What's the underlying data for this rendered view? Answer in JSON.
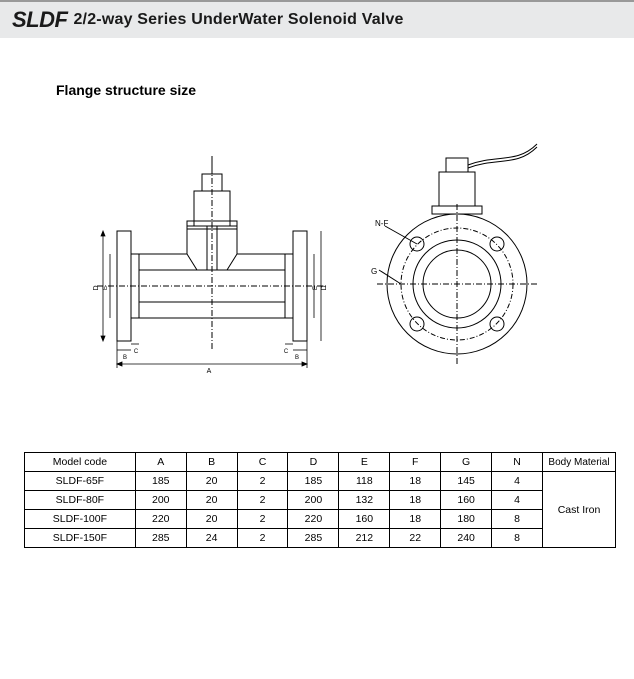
{
  "header": {
    "brand": "SLDF",
    "series": "2/2-way Series UnderWater Solenoid Valve"
  },
  "section_title": "Flange structure size",
  "diagram": {
    "labels": {
      "nf": "N-F",
      "g": "G",
      "a": "A",
      "b": "B",
      "c": "C",
      "d": "D",
      "e": "E"
    },
    "stroke": "#000000",
    "dash": "4 2 1 2"
  },
  "table": {
    "columns": [
      "Model code",
      "A",
      "B",
      "C",
      "D",
      "E",
      "F",
      "G",
      "N",
      "Body Material"
    ],
    "body_material": "Cast Iron",
    "rows": [
      {
        "model": "SLDF-65F",
        "A": "185",
        "B": "20",
        "C": "2",
        "D": "185",
        "E": "118",
        "F": "18",
        "G": "145",
        "N": "4"
      },
      {
        "model": "SLDF-80F",
        "A": "200",
        "B": "20",
        "C": "2",
        "D": "200",
        "E": "132",
        "F": "18",
        "G": "160",
        "N": "4"
      },
      {
        "model": "SLDF-100F",
        "A": "220",
        "B": "20",
        "C": "2",
        "D": "220",
        "E": "160",
        "F": "18",
        "G": "180",
        "N": "8"
      },
      {
        "model": "SLDF-150F",
        "A": "285",
        "B": "24",
        "C": "2",
        "D": "285",
        "E": "212",
        "F": "22",
        "G": "240",
        "N": "8"
      }
    ]
  }
}
